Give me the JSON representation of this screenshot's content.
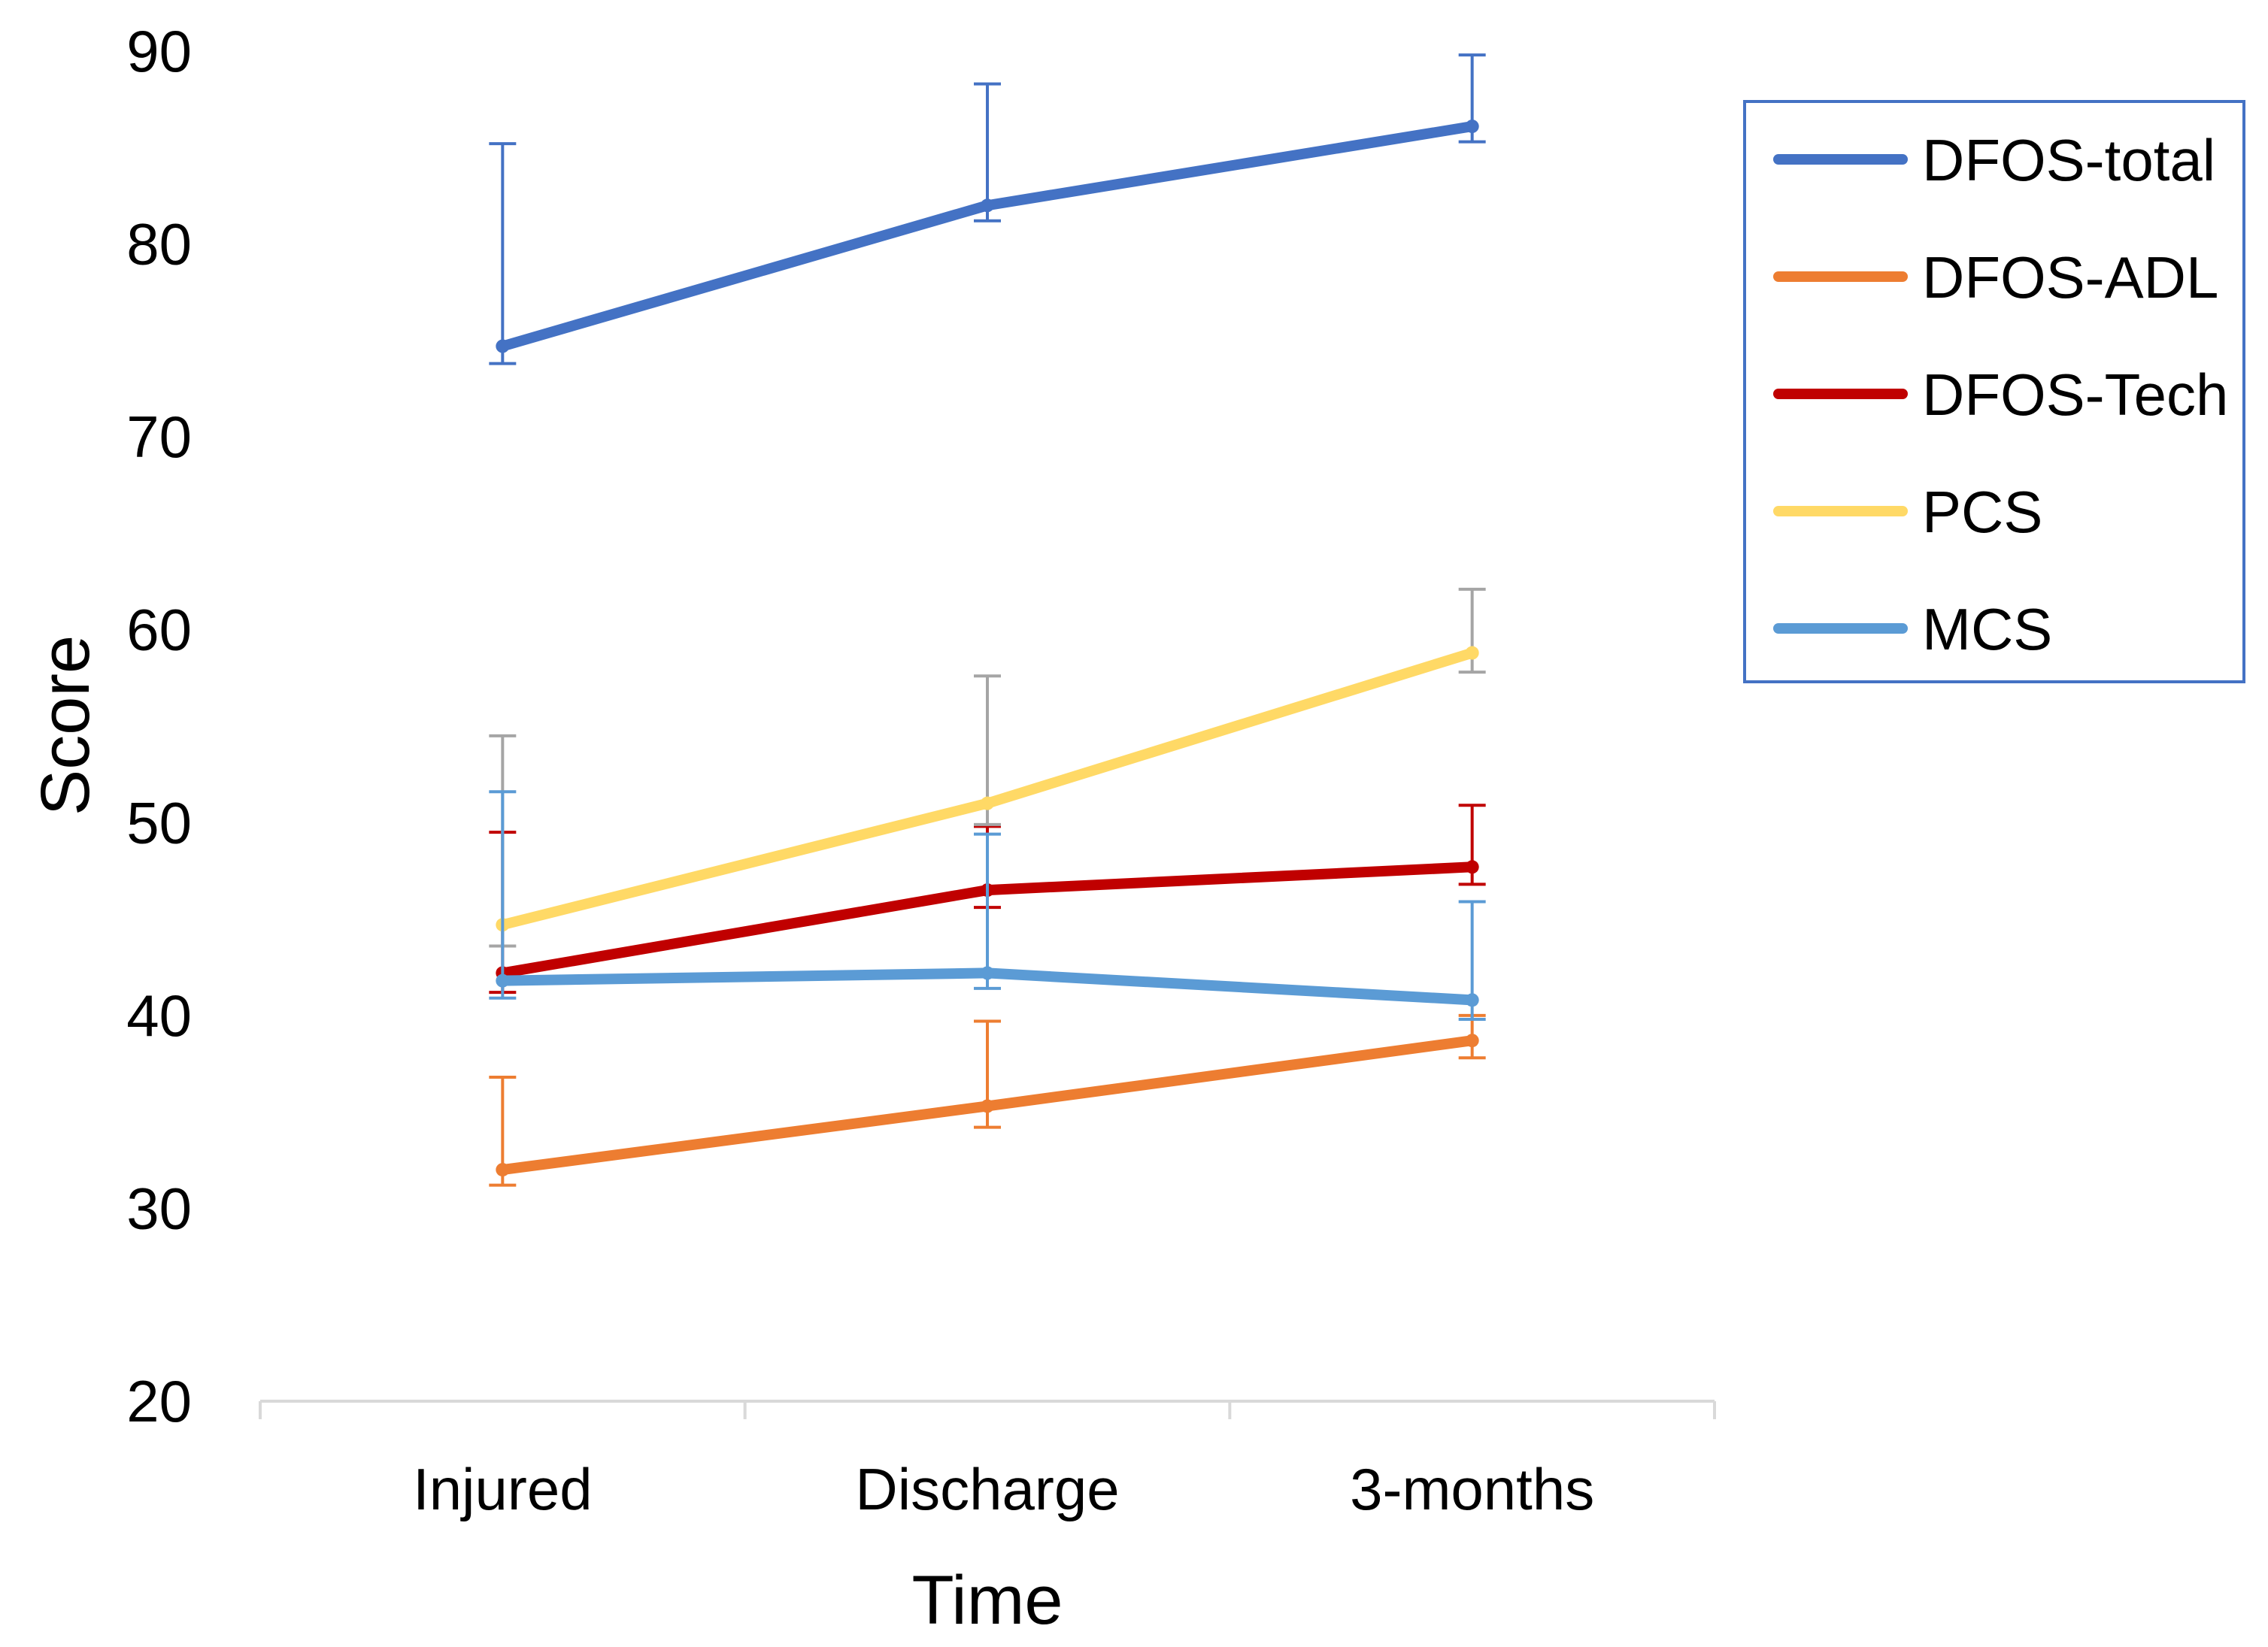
{
  "chart_data": {
    "type": "line",
    "title": "",
    "xlabel": "Time",
    "ylabel": "Score",
    "categories": [
      "Injured",
      "Discharge",
      "3-months"
    ],
    "ylim": [
      20,
      90
    ],
    "yticks": [
      20,
      30,
      40,
      50,
      60,
      70,
      80,
      90
    ],
    "grid": false,
    "legend_position": "top-right",
    "error_bars": true,
    "series": [
      {
        "name": "DFOS-total",
        "color": "#4472C4",
        "error_color": "#4472C4",
        "values": [
          74.7,
          82.0,
          86.1
        ],
        "upper": [
          85.2,
          88.3,
          89.8
        ],
        "lower": [
          73.8,
          81.2,
          85.3
        ]
      },
      {
        "name": "DFOS-ADL",
        "color": "#ED7D31",
        "error_color": "#ED7D31",
        "values": [
          32.0,
          35.3,
          38.7
        ],
        "upper": [
          36.8,
          39.7,
          40.0
        ],
        "lower": [
          31.2,
          34.2,
          37.8
        ]
      },
      {
        "name": "DFOS-Tech",
        "color": "#C00000",
        "error_color": "#C00000",
        "values": [
          42.2,
          46.5,
          47.7
        ],
        "upper": [
          49.5,
          49.8,
          50.9
        ],
        "lower": [
          41.2,
          45.6,
          46.8
        ]
      },
      {
        "name": "PCS",
        "color": "#FFD966",
        "error_color": "#A5A5A5",
        "values": [
          44.7,
          51.0,
          58.8
        ],
        "upper": [
          54.5,
          57.6,
          62.1
        ],
        "lower": [
          43.6,
          49.9,
          57.8
        ]
      },
      {
        "name": "MCS",
        "color": "#5B9BD5",
        "error_color": "#5B9BD5",
        "values": [
          41.8,
          42.2,
          40.8
        ],
        "upper": [
          51.6,
          49.4,
          45.9
        ],
        "lower": [
          40.9,
          41.4,
          39.8
        ]
      }
    ]
  }
}
